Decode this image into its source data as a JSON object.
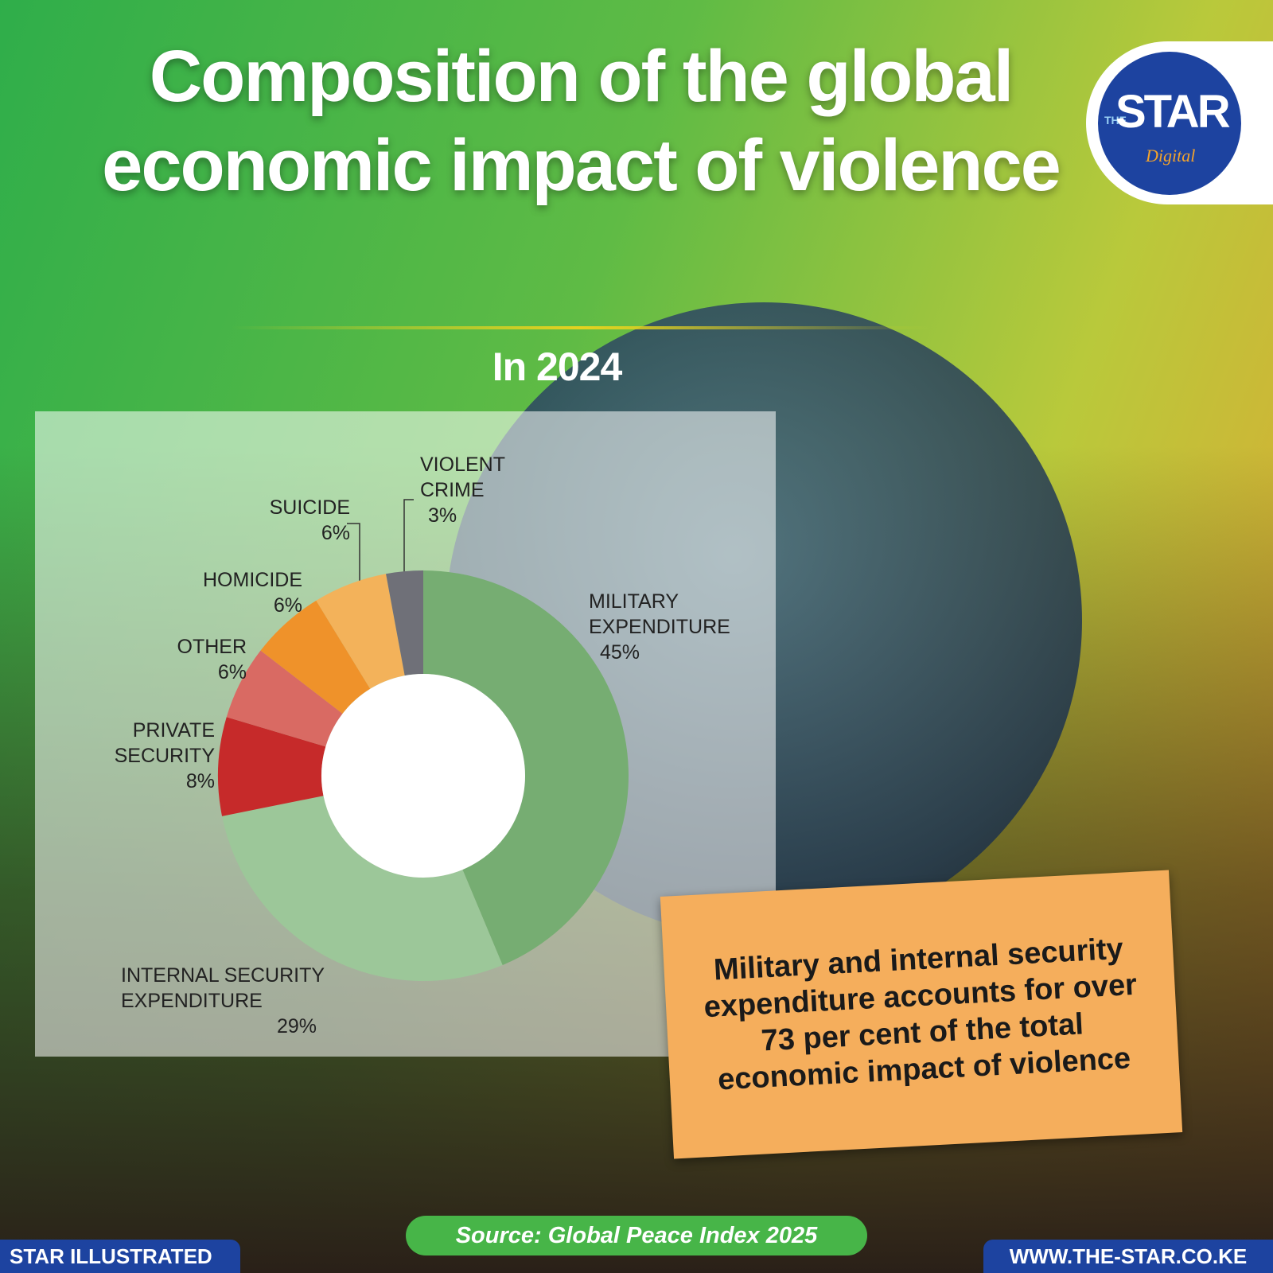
{
  "chart_data": {
    "type": "pie",
    "donut": true,
    "title": "Composition of the global economic impact of violence",
    "subtitle": "In 2024",
    "categories": [
      "MILITARY EXPENDITURE",
      "INTERNAL SECURITY EXPENDITURE",
      "PRIVATE SECURITY",
      "OTHER",
      "HOMICIDE",
      "SUICIDE",
      "VIOLENT CRIME"
    ],
    "values": [
      45,
      29,
      8,
      6,
      6,
      6,
      3
    ],
    "value_labels": [
      "45%",
      "29%",
      "8%",
      "6%",
      "6%",
      "6%",
      "3%"
    ],
    "colors": [
      "#76ad72",
      "#9cc799",
      "#c62a2a",
      "#d96a63",
      "#ef922a",
      "#f3b25a",
      "#6f7078"
    ]
  },
  "logo": {
    "top": "THE",
    "main": "STAR",
    "sub": "Digital"
  },
  "callout": "Military and internal security expenditure accounts for over 73 per cent of the total economic impact of violence",
  "source": "Source: Global Peace Index 2025",
  "credit": "STAR ILLUSTRATED",
  "website": "WWW.THE-STAR.CO.KE"
}
